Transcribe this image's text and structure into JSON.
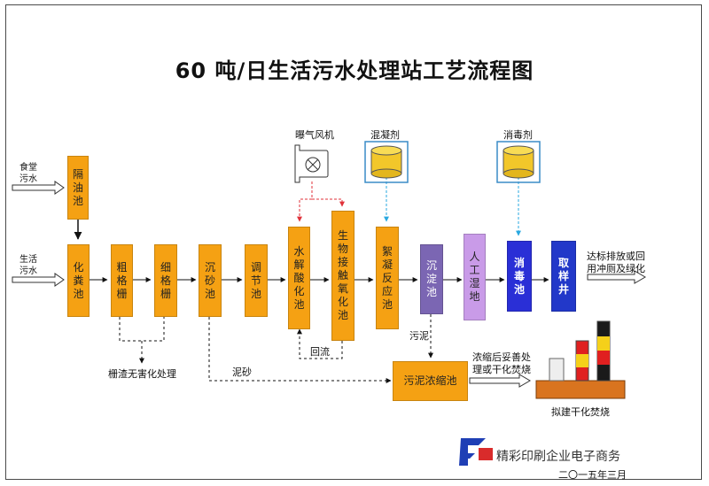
{
  "title": "60 吨/日生活污水处理站工艺流程图",
  "inputs": {
    "canteen": "食堂\n污水",
    "domestic": "生活\n污水"
  },
  "units": {
    "grease": "隔油池",
    "septic": "化粪池",
    "coarse_screen": "粗格栅",
    "fine_screen": "细格栅",
    "grit": "沉砂池",
    "equalization": "调节池",
    "hydrolysis": "水解酸化池",
    "bio_contact": "生物接触氧化池",
    "flocculation": "絮凝反应池",
    "sedimentation": "沉淀池",
    "wetland": "人工湿地",
    "disinfection": "消毒池",
    "sampling": "取样井",
    "sludge_thickener": "污泥浓缩池"
  },
  "labels": {
    "blower": "曝气风机",
    "coagulant": "混凝剂",
    "disinfectant": "消毒剂",
    "outlet": "达标排放或回\n用冲厕及绿化",
    "screening_treat": "栅渣无害化处理",
    "reflux": "回流",
    "sludge": "污泥",
    "grit_sludge": "泥砂",
    "thicken_after": "浓缩后妥善处\n理或干化焚烧",
    "incineration": "拟建干化焚烧"
  },
  "footer": {
    "date": "二〇一五年三月",
    "watermark": "精彩印刷企业电子商务"
  },
  "colors": {
    "orange": "#f5a113",
    "lavender": "#7b66b3",
    "lilac": "#c99be8",
    "blue": "#2a2fd6",
    "red_dashed": "#e0323a",
    "cyan_dashed": "#29a8e0",
    "tank_yellow": "#f2c72a"
  }
}
